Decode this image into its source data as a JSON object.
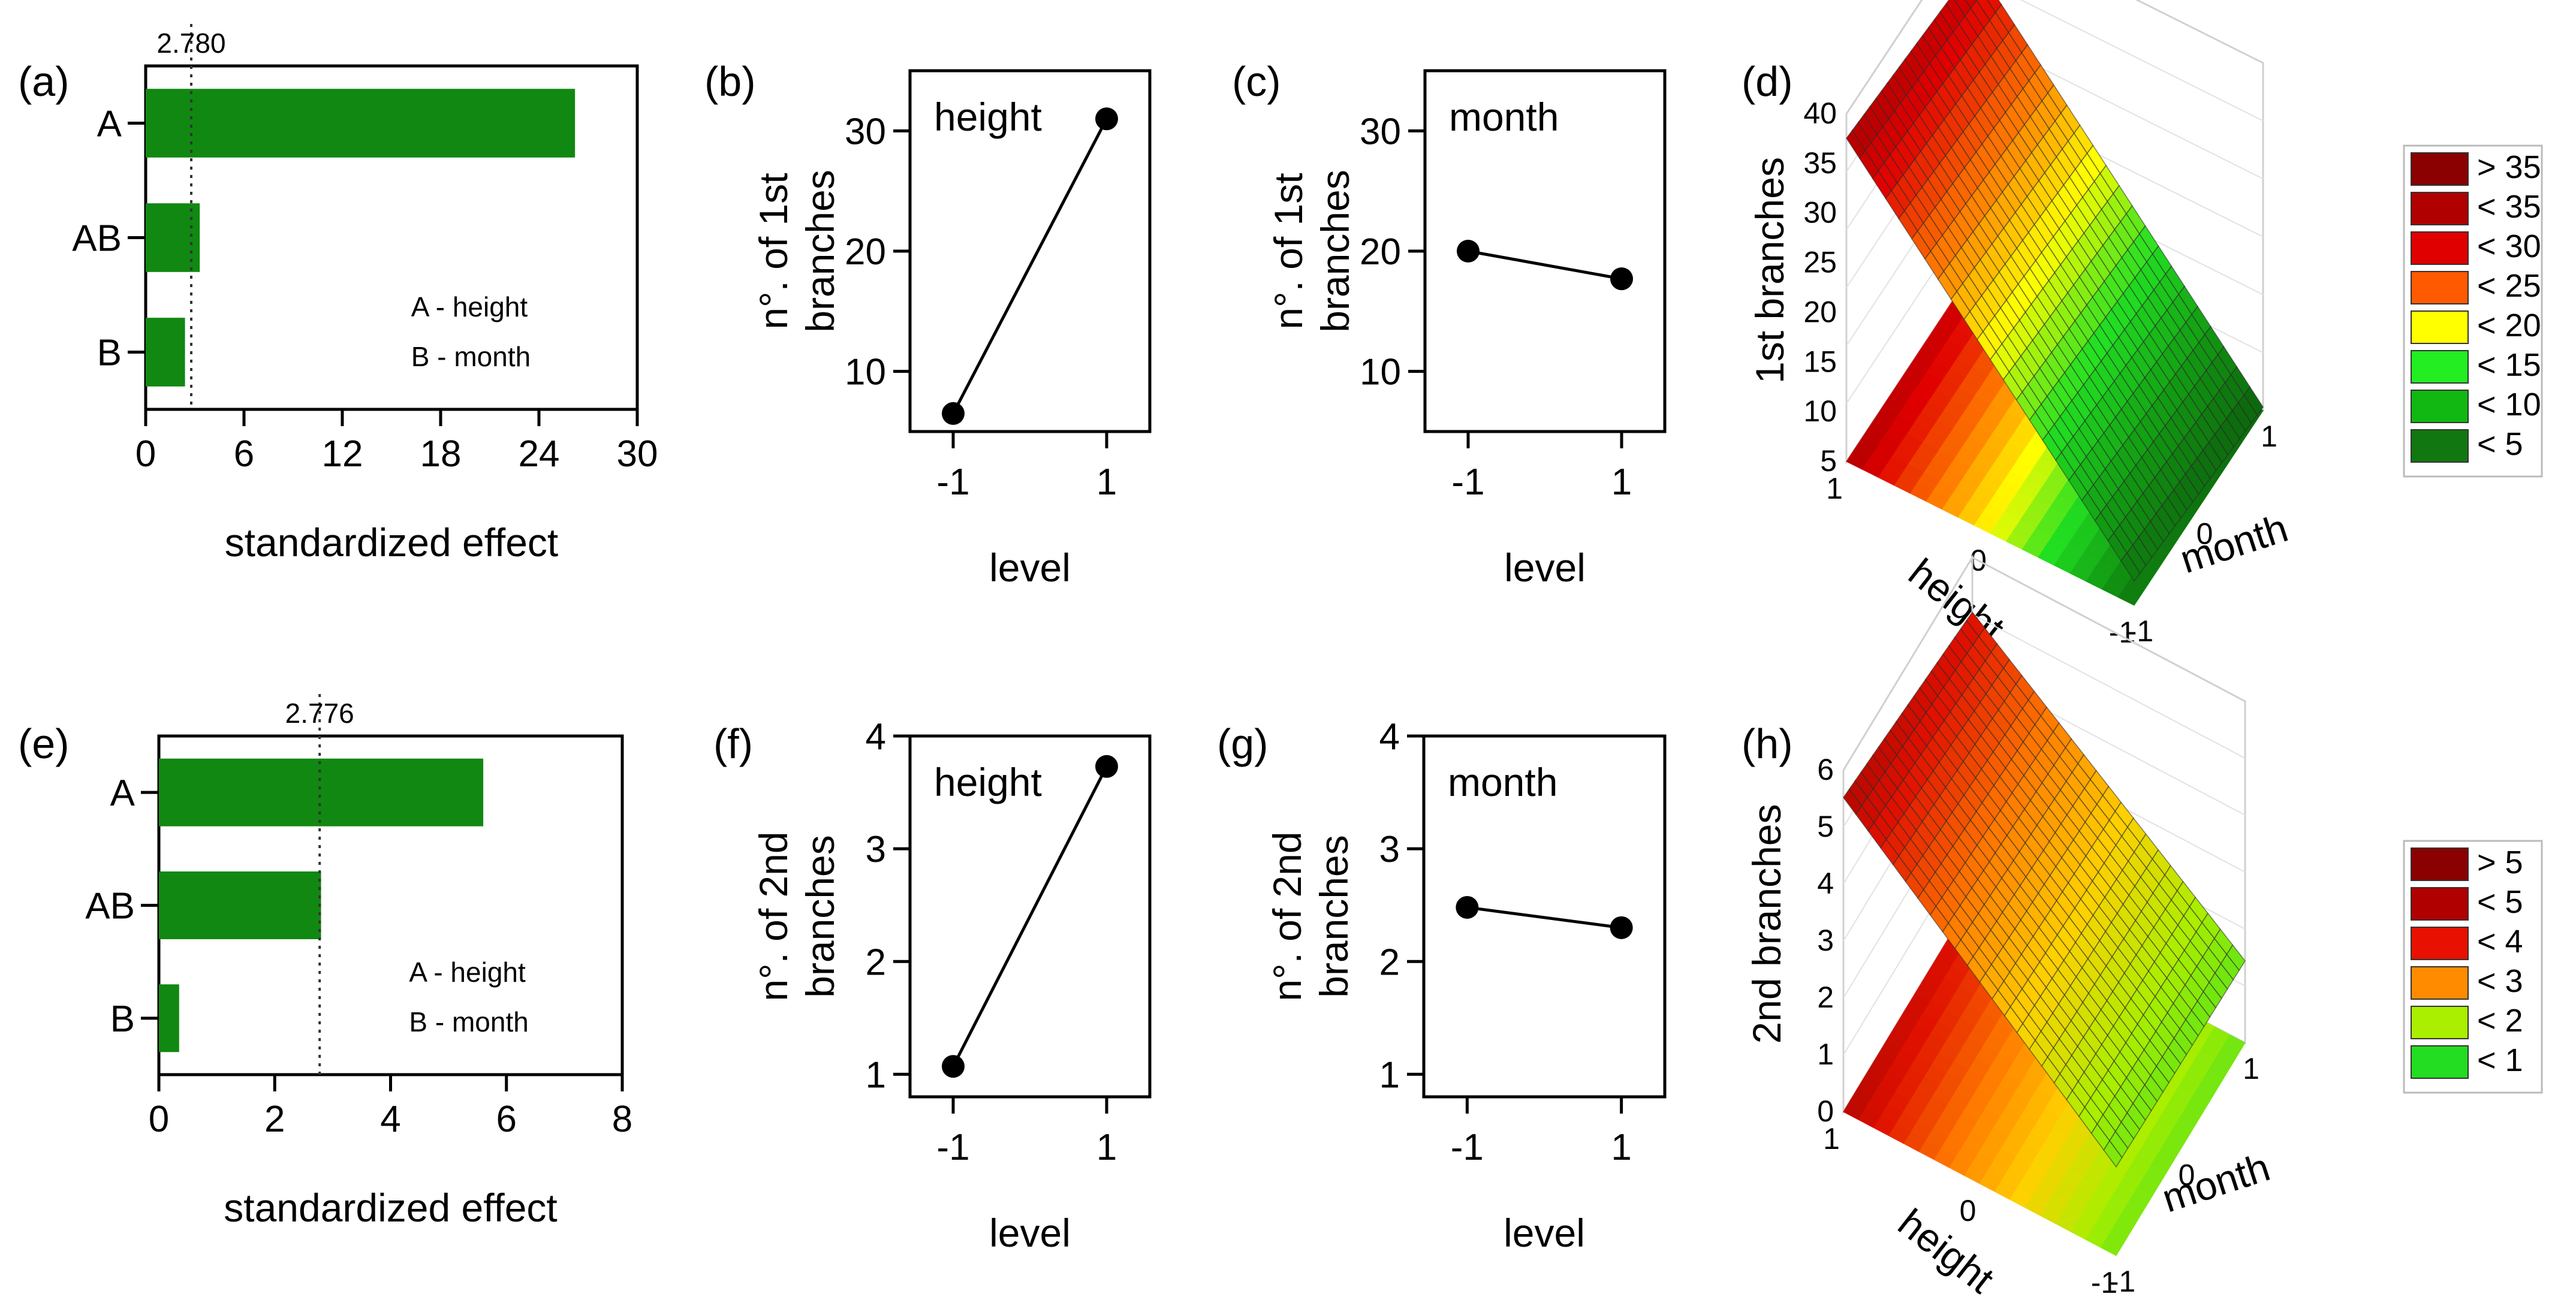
{
  "panels": {
    "a": "(a)",
    "b": "(b)",
    "c": "(c)",
    "d": "(d)",
    "e": "(e)",
    "f": "(f)",
    "g": "(g)",
    "h": "(h)"
  },
  "chart_data": [
    {
      "id": "a",
      "type": "bar",
      "orientation": "horizontal",
      "categories": [
        "A",
        "AB",
        "B"
      ],
      "values": [
        26.2,
        3.3,
        2.4
      ],
      "xlabel": "standardized effect",
      "xlim": [
        0,
        30
      ],
      "xticks": [
        "0",
        "6",
        "12",
        "18",
        "24",
        "30"
      ],
      "ref_line": {
        "value": 2.78,
        "label": "2.780"
      },
      "annotations": [
        "A - height",
        "B - month"
      ],
      "color": "#118811"
    },
    {
      "id": "b",
      "type": "line",
      "x": [
        "-1",
        "1"
      ],
      "y": [
        6.5,
        31
      ],
      "title": "height",
      "xlabel": "level",
      "ylabel": "n°. of 1st\nbranches",
      "ylim": [
        5,
        35
      ],
      "yticks": [
        "10",
        "20",
        "30"
      ]
    },
    {
      "id": "c",
      "type": "line",
      "x": [
        "-1",
        "1"
      ],
      "y": [
        20,
        17.7
      ],
      "title": "month",
      "xlabel": "level",
      "ylabel": "n°. of 1st\nbranches",
      "ylim": [
        5,
        35
      ],
      "yticks": [
        "10",
        "20",
        "30"
      ]
    },
    {
      "id": "d",
      "type": "surface3d",
      "zlabel": "1st branches",
      "xlabel": "height",
      "ylabel": "month",
      "zticks": [
        "5",
        "10",
        "15",
        "20",
        "25",
        "30",
        "35",
        "40"
      ],
      "xticks": [
        "1",
        "0",
        "-1"
      ],
      "yticks": [
        "-1",
        "0",
        "1"
      ],
      "legend": [
        "> 35",
        "< 35",
        "< 30",
        "< 25",
        "< 20",
        "< 15",
        "< 10",
        "< 5"
      ],
      "legend_colors": [
        "#8b0000",
        "#b00000",
        "#e00000",
        "#ff5a00",
        "#ffff00",
        "#22ee22",
        "#11b811",
        "#117711"
      ]
    },
    {
      "id": "e",
      "type": "bar",
      "orientation": "horizontal",
      "categories": [
        "A",
        "AB",
        "B"
      ],
      "values": [
        5.6,
        2.8,
        0.35
      ],
      "xlabel": "standardized effect",
      "xlim": [
        0,
        8
      ],
      "xticks": [
        "0",
        "2",
        "4",
        "6",
        "8"
      ],
      "ref_line": {
        "value": 2.776,
        "label": "2.776"
      },
      "annotations": [
        "A - height",
        "B - month"
      ],
      "color": "#118811"
    },
    {
      "id": "f",
      "type": "line",
      "x": [
        "-1",
        "1"
      ],
      "y": [
        1.07,
        3.73
      ],
      "title": "height",
      "xlabel": "level",
      "ylabel": "n°. of 2nd\nbranches",
      "ylim": [
        0.8,
        4
      ],
      "yticks": [
        "1",
        "2",
        "3",
        "4"
      ]
    },
    {
      "id": "g",
      "type": "line",
      "x": [
        "-1",
        "1"
      ],
      "y": [
        2.48,
        2.3
      ],
      "title": "month",
      "xlabel": "level",
      "ylabel": "n°. of 2nd\nbranches",
      "ylim": [
        0.8,
        4
      ],
      "yticks": [
        "1",
        "2",
        "3",
        "4"
      ]
    },
    {
      "id": "h",
      "type": "surface3d",
      "zlabel": "2nd branches",
      "xlabel": "height",
      "ylabel": "month",
      "zticks": [
        "0",
        "1",
        "2",
        "3",
        "4",
        "5",
        "6"
      ],
      "xticks": [
        "1",
        "0",
        "-1"
      ],
      "yticks": [
        "-1",
        "0",
        "1"
      ],
      "legend": [
        "> 5",
        "< 5",
        "< 4",
        "< 3",
        "< 2",
        "< 1"
      ],
      "legend_colors": [
        "#8b0000",
        "#b00000",
        "#e81000",
        "#ff8c00",
        "#aaee00",
        "#22dd22"
      ]
    }
  ]
}
